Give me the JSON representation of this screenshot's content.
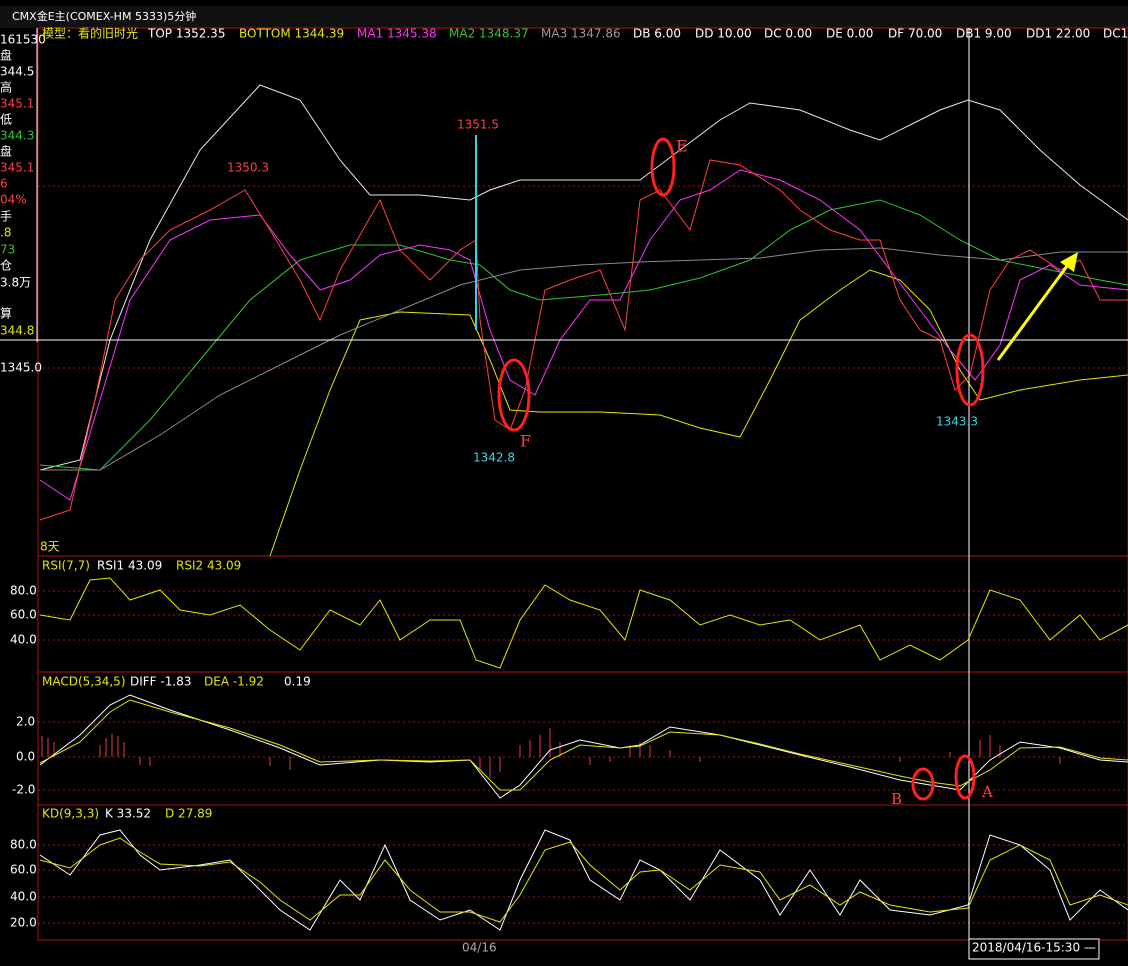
{
  "window_title": "CMX金E主(COMEX-HM 5333)5分钟",
  "info_panel": [
    "161530",
    "盘",
    "344.5",
    "高",
    "345.1",
    "低",
    "344.3",
    "盘",
    "345.1",
    "6",
    "04%",
    "手",
    ".8",
    "73",
    "仓",
    "3.8万",
    "算",
    "344.8"
  ],
  "main_panel": {
    "header": [
      "模型：看的旧时光",
      "TOP 1352.35",
      "BOTTOM 1344.39",
      "MA1 1345.38",
      "MA2 1348.37",
      "MA3 1347.86",
      "DB 6.00",
      "DD 10.00",
      "DC 0.00",
      "DE 0.00",
      "DF 70.00",
      "DB1 9.00",
      "DD1 22.00",
      "DC1"
    ],
    "axis_labels": [
      "1345.0"
    ],
    "annotations": [
      "1350.3",
      "1351.5",
      "1342.8",
      "1343.3",
      "E",
      "F",
      "8天"
    ]
  },
  "rsi_panel": {
    "header": [
      "RSI(7,7)",
      "RSI1 43.09",
      "RSI2 43.09"
    ],
    "axis_labels": [
      "80.0",
      "60.0",
      "40.0"
    ]
  },
  "macd_panel": {
    "header": [
      "MACD(5,34,5)",
      "DIFF -1.83",
      "DEA -1.92",
      "0.19"
    ],
    "axis_labels": [
      "2.0",
      "0.0",
      "-2.0"
    ],
    "annotations": [
      "B",
      "A"
    ]
  },
  "kd_panel": {
    "header": [
      "KD(9,3,3)",
      "K 33.52",
      "D 27.89"
    ],
    "axis_labels": [
      "80.0",
      "60.0",
      "40.0",
      "20.0"
    ]
  },
  "time_axis": {
    "date": "04/16",
    "cursor": "2018/04/16-15:30 —"
  }
}
